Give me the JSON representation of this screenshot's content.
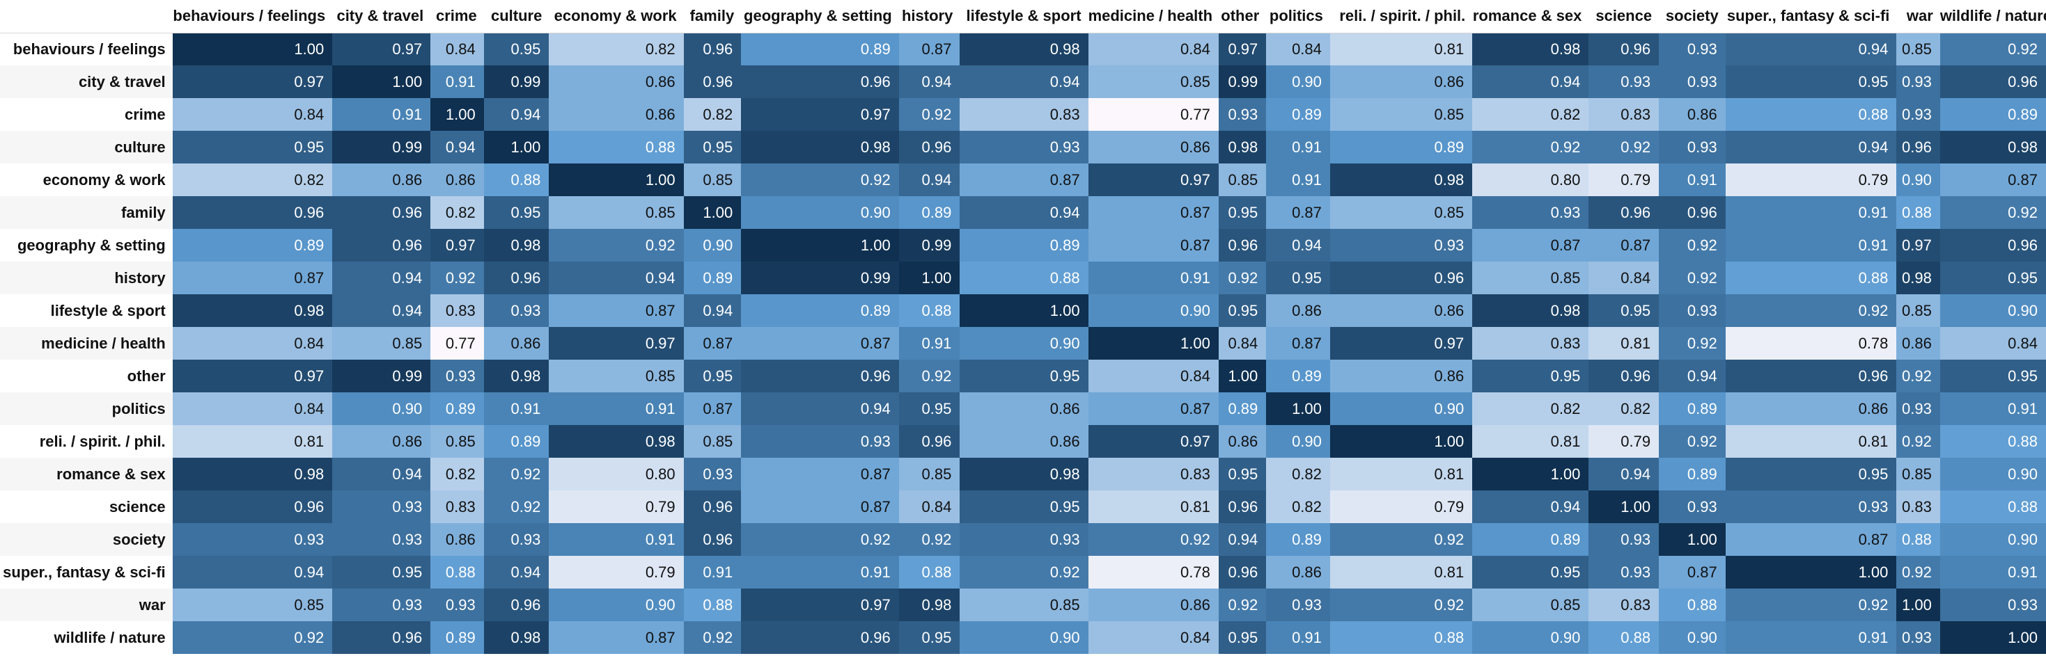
{
  "chart_data": {
    "type": "heatmap",
    "categories": [
      "behaviours / feelings",
      "city & travel",
      "crime",
      "culture",
      "economy & work",
      "family",
      "geography & setting",
      "history",
      "lifestyle & sport",
      "medicine / health",
      "other",
      "politics",
      "reli. / spirit. / phil.",
      "romance & sex",
      "science",
      "society",
      "super., fantasy & sci-fi",
      "war",
      "wildlife / nature"
    ],
    "values": [
      [
        1.0,
        0.97,
        0.84,
        0.95,
        0.82,
        0.96,
        0.89,
        0.87,
        0.98,
        0.84,
        0.97,
        0.84,
        0.81,
        0.98,
        0.96,
        0.93,
        0.94,
        0.85,
        0.92
      ],
      [
        0.97,
        1.0,
        0.91,
        0.99,
        0.86,
        0.96,
        0.96,
        0.94,
        0.94,
        0.85,
        0.99,
        0.9,
        0.86,
        0.94,
        0.93,
        0.93,
        0.95,
        0.93,
        0.96
      ],
      [
        0.84,
        0.91,
        1.0,
        0.94,
        0.86,
        0.82,
        0.97,
        0.92,
        0.83,
        0.77,
        0.93,
        0.89,
        0.85,
        0.82,
        0.83,
        0.86,
        0.88,
        0.93,
        0.89
      ],
      [
        0.95,
        0.99,
        0.94,
        1.0,
        0.88,
        0.95,
        0.98,
        0.96,
        0.93,
        0.86,
        0.98,
        0.91,
        0.89,
        0.92,
        0.92,
        0.93,
        0.94,
        0.96,
        0.98
      ],
      [
        0.82,
        0.86,
        0.86,
        0.88,
        1.0,
        0.85,
        0.92,
        0.94,
        0.87,
        0.97,
        0.85,
        0.91,
        0.98,
        0.8,
        0.79,
        0.91,
        0.79,
        0.9,
        0.87
      ],
      [
        0.96,
        0.96,
        0.82,
        0.95,
        0.85,
        1.0,
        0.9,
        0.89,
        0.94,
        0.87,
        0.95,
        0.87,
        0.85,
        0.93,
        0.96,
        0.96,
        0.91,
        0.88,
        0.92
      ],
      [
        0.89,
        0.96,
        0.97,
        0.98,
        0.92,
        0.9,
        1.0,
        0.99,
        0.89,
        0.87,
        0.96,
        0.94,
        0.93,
        0.87,
        0.87,
        0.92,
        0.91,
        0.97,
        0.96
      ],
      [
        0.87,
        0.94,
        0.92,
        0.96,
        0.94,
        0.89,
        0.99,
        1.0,
        0.88,
        0.91,
        0.92,
        0.95,
        0.96,
        0.85,
        0.84,
        0.92,
        0.88,
        0.98,
        0.95
      ],
      [
        0.98,
        0.94,
        0.83,
        0.93,
        0.87,
        0.94,
        0.89,
        0.88,
        1.0,
        0.9,
        0.95,
        0.86,
        0.86,
        0.98,
        0.95,
        0.93,
        0.92,
        0.85,
        0.9
      ],
      [
        0.84,
        0.85,
        0.77,
        0.86,
        0.97,
        0.87,
        0.87,
        0.91,
        0.9,
        1.0,
        0.84,
        0.87,
        0.97,
        0.83,
        0.81,
        0.92,
        0.78,
        0.86,
        0.84
      ],
      [
        0.97,
        0.99,
        0.93,
        0.98,
        0.85,
        0.95,
        0.96,
        0.92,
        0.95,
        0.84,
        1.0,
        0.89,
        0.86,
        0.95,
        0.96,
        0.94,
        0.96,
        0.92,
        0.95
      ],
      [
        0.84,
        0.9,
        0.89,
        0.91,
        0.91,
        0.87,
        0.94,
        0.95,
        0.86,
        0.87,
        0.89,
        1.0,
        0.9,
        0.82,
        0.82,
        0.89,
        0.86,
        0.93,
        0.91
      ],
      [
        0.81,
        0.86,
        0.85,
        0.89,
        0.98,
        0.85,
        0.93,
        0.96,
        0.86,
        0.97,
        0.86,
        0.9,
        1.0,
        0.81,
        0.79,
        0.92,
        0.81,
        0.92,
        0.88
      ],
      [
        0.98,
        0.94,
        0.82,
        0.92,
        0.8,
        0.93,
        0.87,
        0.85,
        0.98,
        0.83,
        0.95,
        0.82,
        0.81,
        1.0,
        0.94,
        0.89,
        0.95,
        0.85,
        0.9
      ],
      [
        0.96,
        0.93,
        0.83,
        0.92,
        0.79,
        0.96,
        0.87,
        0.84,
        0.95,
        0.81,
        0.96,
        0.82,
        0.79,
        0.94,
        1.0,
        0.93,
        0.93,
        0.83,
        0.88
      ],
      [
        0.93,
        0.93,
        0.86,
        0.93,
        0.91,
        0.96,
        0.92,
        0.92,
        0.93,
        0.92,
        0.94,
        0.89,
        0.92,
        0.89,
        0.93,
        1.0,
        0.87,
        0.88,
        0.9
      ],
      [
        0.94,
        0.95,
        0.88,
        0.94,
        0.79,
        0.91,
        0.91,
        0.88,
        0.92,
        0.78,
        0.96,
        0.86,
        0.81,
        0.95,
        0.93,
        0.87,
        1.0,
        0.92,
        0.91
      ],
      [
        0.85,
        0.93,
        0.93,
        0.96,
        0.9,
        0.88,
        0.97,
        0.98,
        0.85,
        0.86,
        0.92,
        0.93,
        0.92,
        0.85,
        0.83,
        0.88,
        0.92,
        1.0,
        0.93
      ],
      [
        0.92,
        0.96,
        0.89,
        0.98,
        0.87,
        0.92,
        0.96,
        0.95,
        0.9,
        0.84,
        0.95,
        0.91,
        0.88,
        0.9,
        0.88,
        0.9,
        0.91,
        0.93,
        1.0
      ]
    ],
    "colors": {
      "low": "#fbf7fc",
      "mid": "#5b9bd2",
      "high": "#0f3050",
      "text_dark": "#111111",
      "text_light": "#ffffff"
    }
  }
}
